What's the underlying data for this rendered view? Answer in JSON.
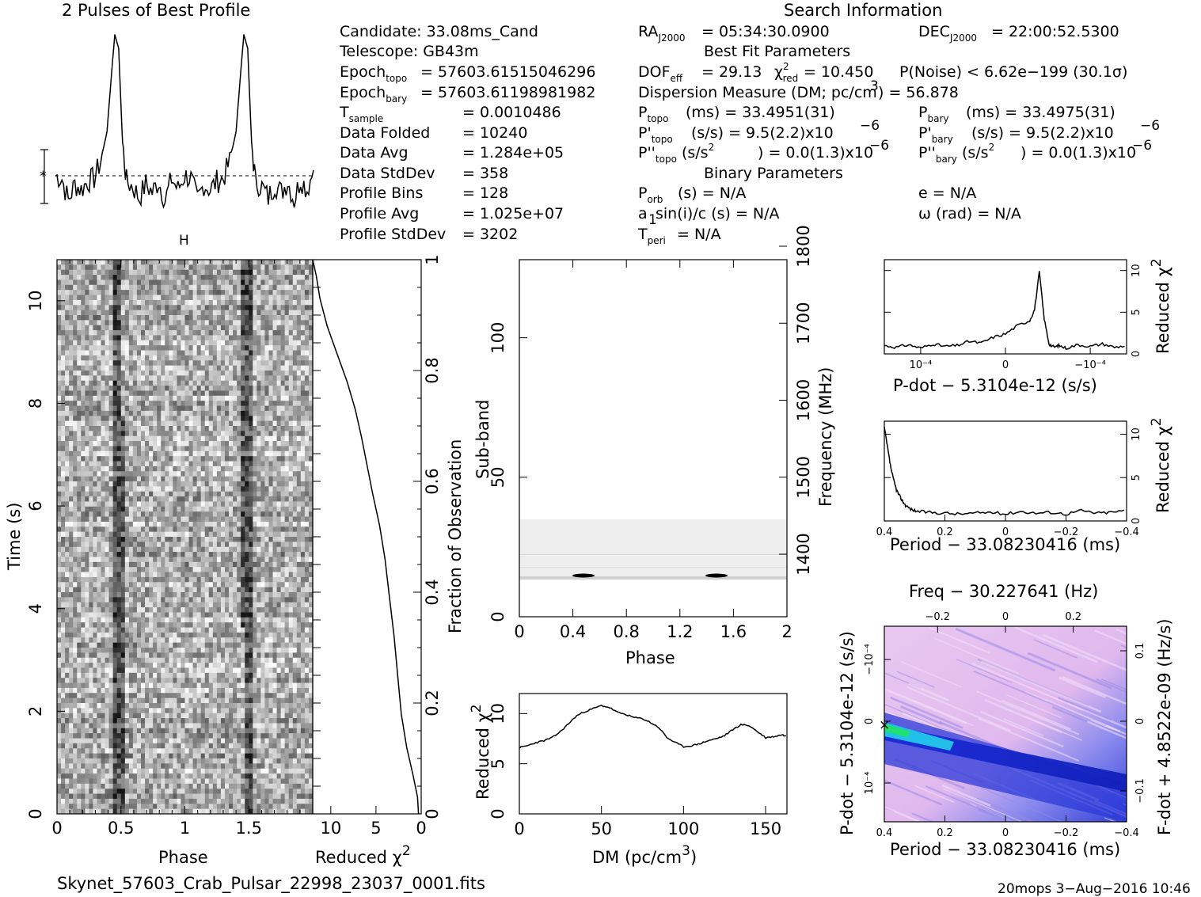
{
  "header": {
    "profile_title": "2 Pulses of Best Profile",
    "search_title": "Search Information",
    "best_fit_title": "Best Fit Parameters",
    "binary_title": "Binary Parameters"
  },
  "info": {
    "candidate": "Candidate:  33.08ms_Cand",
    "telescope": "Telescope:  GB43m",
    "epoch_topo": "= 57603.61515046296",
    "epoch_bary": "= 57603.61198981982",
    "t_sample": "=   0.0010486",
    "data_folded_label": "Data Folded",
    "data_folded": "=   10240",
    "data_avg_label": "Data Avg",
    "data_avg": "=   1.284e+05",
    "data_stddev_label": "Data StdDev",
    "data_stddev": "=   358",
    "profile_bins_label": "Profile Bins",
    "profile_bins": "=   128",
    "profile_avg_label": "Profile Avg",
    "profile_avg": "=   1.025e+07",
    "profile_stddev_label": "Profile StdDev",
    "profile_stddev": "=   3202"
  },
  "search": {
    "ra": "= 05:34:30.0900",
    "dec": "= 22:00:52.5300",
    "dof": "= 29.13",
    "chi2_red": "= 10.450",
    "p_noise": "P(Noise) < 6.62e−199   (30.1σ)",
    "dm": "Dispersion Measure (DM; pc/cm",
    "dm_value": ") = 56.878",
    "p_topo": "(ms) =  33.4951(31)",
    "p_bary": "(ms) =  33.4975(31)",
    "pd_topo": "(s/s) =   9.5(2.2)x10",
    "pd_bary": "(s/s) =   9.5(2.2)x10",
    "pdd_topo": ") = 0.0(1.3)x10",
    "pdd_bary": ") = 0.0(1.3)x10",
    "p_orb": "(s) = N/A",
    "e": "e = N/A",
    "a1": "a",
    "a1_rest": "sin(i)/c (s) = N/A",
    "omega": "ω (rad) = N/A",
    "t_peri": "= N/A"
  },
  "footer": {
    "filename": "Skynet_57603_Crab_Pulsar_22998_23037_0001.fits",
    "stamp": "20mops  3−Aug−2016 10:46"
  },
  "chart_data": [
    {
      "type": "line",
      "title": "2 Pulses of Best Profile",
      "x": [
        0.0,
        0.05,
        0.1,
        0.15,
        0.2,
        0.25,
        0.3,
        0.35,
        0.4,
        0.43,
        0.46,
        0.49,
        0.52,
        0.55,
        0.6,
        0.65,
        0.7,
        0.75,
        0.8,
        0.85,
        0.9,
        0.95,
        1.0,
        1.05,
        1.1,
        1.15,
        1.2,
        1.25,
        1.3,
        1.35,
        1.4,
        1.43,
        1.46,
        1.49,
        1.52,
        1.55,
        1.6,
        1.65,
        1.7,
        1.75,
        1.8,
        1.85,
        1.9,
        1.95,
        2.0
      ],
      "values": [
        0.0,
        -0.1,
        -0.9,
        -0.3,
        -0.5,
        -0.2,
        -0.1,
        0.5,
        1.6,
        3.4,
        5.1,
        4.6,
        1.2,
        -0.2,
        -0.4,
        -0.8,
        -0.3,
        -0.6,
        -0.2,
        -0.9,
        -0.1,
        -0.5,
        0.0,
        -0.1,
        -0.9,
        -0.3,
        -0.5,
        -0.2,
        -0.1,
        0.5,
        1.6,
        3.4,
        5.1,
        4.6,
        1.2,
        -0.2,
        -0.4,
        -0.8,
        -0.3,
        -0.6,
        -0.2,
        -0.9,
        -0.1,
        -0.5,
        0.2
      ]
    },
    {
      "type": "heatmap",
      "xlabel": "Phase",
      "ylabel": "Time (s)",
      "xlim": [
        0,
        2
      ],
      "ylim": [
        0,
        10.8
      ],
      "xticks": [
        "0",
        "0.5",
        "1",
        "1.5"
      ],
      "yticks": [
        "0",
        "2",
        "4",
        "6",
        "8",
        "10"
      ]
    },
    {
      "type": "line",
      "xlabel": "Reduced χ",
      "ylabel": "Fraction of Observation",
      "xticks": [
        "10",
        "5",
        "0"
      ],
      "yticks": [
        "0",
        "0.2",
        "0.4",
        "0.6",
        "0.8",
        "1"
      ],
      "x": [
        0.3,
        0.4,
        0.9,
        1.6,
        2.2,
        2.6,
        3.0,
        3.5,
        4.0,
        4.6,
        5.4,
        6.0,
        6.6,
        7.3,
        8.2,
        9.3,
        10.4,
        11.2,
        11.6,
        12.0
      ],
      "y": [
        0.0,
        0.03,
        0.07,
        0.12,
        0.18,
        0.25,
        0.32,
        0.39,
        0.46,
        0.52,
        0.58,
        0.63,
        0.68,
        0.73,
        0.78,
        0.83,
        0.88,
        0.93,
        0.97,
        1.0
      ]
    },
    {
      "type": "heatmap",
      "xlabel": "Phase",
      "ylabel": "Sub-band",
      "y2label": "Frequency (MHz)",
      "xticks": [
        "0",
        "0.4",
        "0.8",
        "1.2",
        "1.6",
        "2"
      ],
      "yticks": [
        "0",
        "50",
        "100"
      ],
      "y2ticks": [
        "1400",
        "1500",
        "1600",
        "1700",
        "1800"
      ]
    },
    {
      "type": "line",
      "xlabel": "DM (pc/cm",
      "ylabel": "Reduced χ",
      "xticks": [
        "0",
        "50",
        "100",
        "150"
      ],
      "yticks": [
        "0",
        "5",
        "10"
      ],
      "x": [
        0,
        5,
        10,
        15,
        20,
        25,
        30,
        35,
        40,
        45,
        50,
        55,
        60,
        65,
        70,
        75,
        80,
        85,
        90,
        95,
        100,
        105,
        110,
        115,
        120,
        125,
        130,
        135,
        140,
        145,
        150,
        155,
        160,
        163
      ],
      "values": [
        6.6,
        6.8,
        7.1,
        7.3,
        7.6,
        8.2,
        9.0,
        9.8,
        10.2,
        10.5,
        10.8,
        10.6,
        10.1,
        9.9,
        9.6,
        9.5,
        9.1,
        8.6,
        7.6,
        7.1,
        6.7,
        6.8,
        7.0,
        7.3,
        7.5,
        7.8,
        8.4,
        8.9,
        8.8,
        8.2,
        7.6,
        7.7,
        7.9,
        7.7
      ]
    },
    {
      "type": "line",
      "xlabel": "P-dot − 5.3104e-12 (s/s)",
      "ylabel": "Reduced χ",
      "xticks": [
        "10⁻⁴",
        "0",
        "−10⁻⁴"
      ],
      "yticks": [
        "0",
        "5",
        "10"
      ],
      "x": [
        0.0,
        0.05,
        0.1,
        0.15,
        0.2,
        0.25,
        0.3,
        0.35,
        0.4,
        0.45,
        0.5,
        0.55,
        0.6,
        0.62,
        0.64,
        0.66,
        0.68,
        0.7,
        0.72,
        0.75,
        0.8,
        0.85,
        0.9,
        0.95,
        1.0
      ],
      "values": [
        1.0,
        0.8,
        1.1,
        0.7,
        1.2,
        0.9,
        1.0,
        1.5,
        1.3,
        2.0,
        2.4,
        3.4,
        4.0,
        5.3,
        9.8,
        4.2,
        1.2,
        0.8,
        1.0,
        0.7,
        1.1,
        0.9,
        1.2,
        0.8,
        1.0
      ]
    },
    {
      "type": "line",
      "xlabel": "Period − 33.08230416 (ms)",
      "ylabel": "Reduced χ",
      "xticks": [
        "0.4",
        "0.2",
        "0",
        "−0.2",
        "−0.4"
      ],
      "yticks": [
        "0",
        "5",
        "10"
      ],
      "x": [
        0.4,
        0.39,
        0.38,
        0.37,
        0.36,
        0.35,
        0.34,
        0.33,
        0.31,
        0.29,
        0.25,
        0.2,
        0.15,
        0.1,
        0.05,
        0.0,
        -0.05,
        -0.1,
        -0.15,
        -0.2,
        -0.25,
        -0.3,
        -0.35,
        -0.4
      ],
      "values": [
        10.8,
        8.6,
        6.4,
        4.8,
        3.6,
        2.9,
        2.3,
        1.8,
        1.3,
        1.1,
        1.0,
        0.9,
        0.8,
        0.9,
        1.0,
        0.8,
        1.1,
        0.9,
        1.0,
        0.8,
        1.2,
        0.9,
        1.0,
        1.2
      ]
    },
    {
      "type": "heatmap",
      "title": "Freq − 30.227641 (Hz)",
      "xlabel": "Period − 33.08230416 (ms)",
      "ylabel": "P-dot − 5.3104e-12 (s/s)",
      "y2label": "F-dot + 4.8522e-09 (Hz/s)",
      "xticks": [
        "0.4",
        "0.2",
        "0",
        "−0.2",
        "−0.4"
      ],
      "x2ticks": [
        "−0.2",
        "0",
        "0.2"
      ],
      "yticks": [
        "−10⁻⁴",
        "0",
        "10⁻⁴"
      ],
      "y2ticks": [
        "0.1",
        "0",
        "−0.1"
      ]
    }
  ]
}
